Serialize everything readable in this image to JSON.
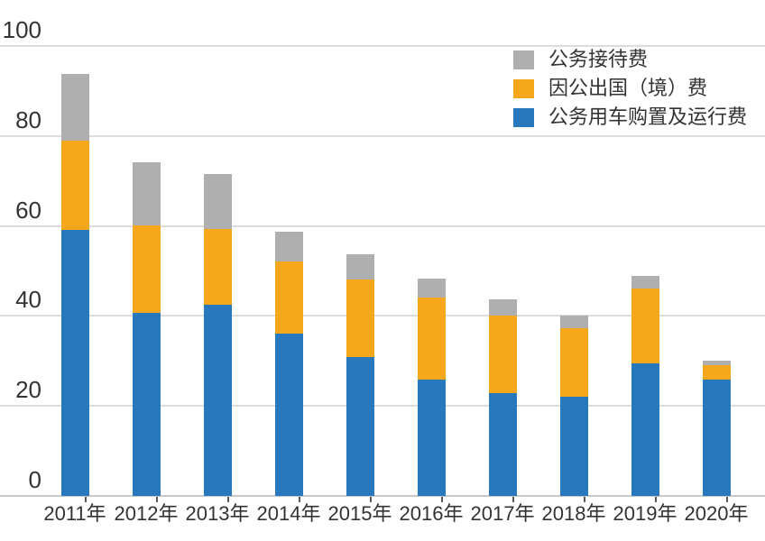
{
  "chart_data": {
    "type": "bar",
    "stacked": true,
    "title": "",
    "xlabel": "",
    "ylabel": "",
    "categories": [
      "2011年",
      "2012年",
      "2013年",
      "2014年",
      "2015年",
      "2016年",
      "2017年",
      "2018年",
      "2019年",
      "2020年"
    ],
    "series": [
      {
        "name": "公务用车购置及运行费",
        "color": "#2878BE",
        "values": [
          59.2,
          40.7,
          42.5,
          36.0,
          30.9,
          25.9,
          22.9,
          22.0,
          29.5,
          25.8
        ]
      },
      {
        "name": "因公出国（境）费",
        "color": "#F6A81C",
        "values": [
          19.8,
          19.4,
          16.9,
          16.2,
          17.1,
          18.2,
          17.2,
          15.3,
          16.5,
          3.3
        ]
      },
      {
        "name": "公务接待费",
        "color": "#AFAFAF",
        "values": [
          14.7,
          14.1,
          12.1,
          6.6,
          5.8,
          4.2,
          3.5,
          2.8,
          2.9,
          0.9
        ]
      }
    ],
    "legend": [
      "公务接待费",
      "因公出国（境）费",
      "公务用车购置及运行费"
    ],
    "legend_position": "top-right",
    "y_ticks": [
      0,
      20,
      40,
      60,
      80,
      100
    ],
    "ylim": [
      0,
      100
    ],
    "grid": true
  },
  "colors": {
    "background": "#FFFFFF",
    "grid_line": "#DCDCDC",
    "axis_line": "#C8C8C8",
    "tick_mark": "#595959",
    "text": "#333333"
  }
}
